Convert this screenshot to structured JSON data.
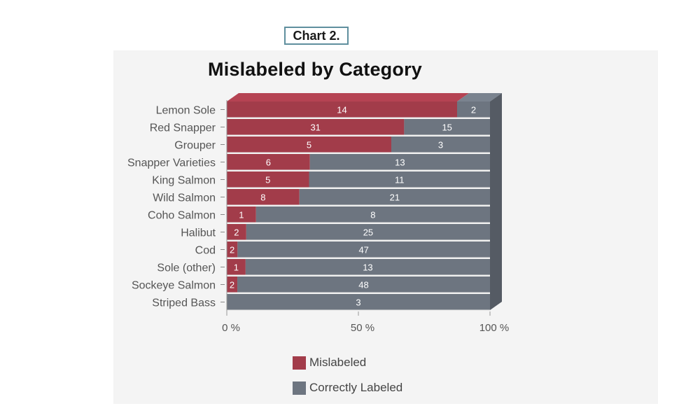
{
  "caption": "Chart 2.",
  "chart_data": {
    "type": "bar",
    "orientation": "horizontal",
    "stacked": "percent",
    "title": "Mislabeled by Category",
    "categories": [
      "Lemon Sole",
      "Red Snapper",
      "Grouper",
      "Snapper Varieties",
      "King Salmon",
      "Wild Salmon",
      "Coho Salmon",
      "Halibut",
      "Cod",
      "Sole (other)",
      "Sockeye Salmon",
      "Striped Bass"
    ],
    "series": [
      {
        "name": "Mislabeled",
        "color": "#a23c4a",
        "values": [
          14,
          31,
          5,
          6,
          5,
          8,
          1,
          2,
          2,
          1,
          2,
          0
        ]
      },
      {
        "name": "Correctly Labeled",
        "color": "#6d7580",
        "values": [
          2,
          15,
          3,
          13,
          11,
          21,
          8,
          25,
          47,
          13,
          48,
          3
        ]
      }
    ],
    "x_ticks": [
      "0 %",
      "50 %",
      "100 %"
    ],
    "xlim": [
      0,
      100
    ],
    "legend": "bottom"
  }
}
